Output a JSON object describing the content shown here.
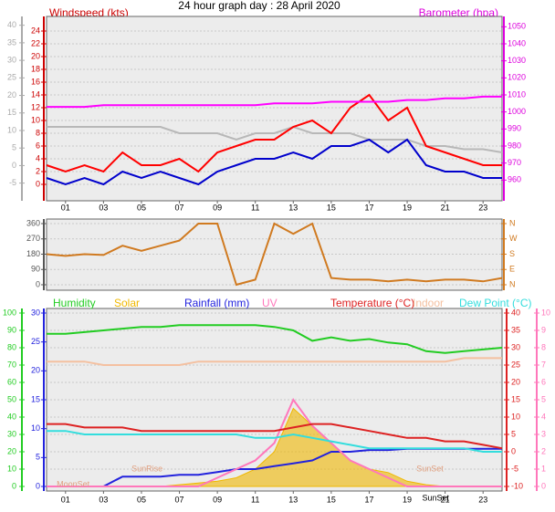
{
  "chart_data": [
    {
      "type": "line",
      "title": "24 hour graph day : 28 April 2020",
      "left_label": "Windspeed (kts)",
      "right_label": "Barometer (hpa)",
      "x": [
        0,
        1,
        2,
        3,
        4,
        5,
        6,
        7,
        8,
        9,
        10,
        11,
        12,
        13,
        14,
        15,
        16,
        17,
        18,
        19,
        20,
        21,
        22,
        23,
        24
      ],
      "xlim": [
        0,
        24
      ],
      "xticks": [
        {
          "value": 1,
          "label": "01"
        },
        {
          "value": 3,
          "label": "03"
        },
        {
          "value": 5,
          "label": "05"
        },
        {
          "value": 7,
          "label": "07"
        },
        {
          "value": 9,
          "label": "09"
        },
        {
          "value": 11,
          "label": "11"
        },
        {
          "value": 13,
          "label": "13"
        },
        {
          "value": 15,
          "label": "15"
        },
        {
          "value": 17,
          "label": "17"
        },
        {
          "value": 19,
          "label": "19"
        },
        {
          "value": 21,
          "label": "21"
        },
        {
          "value": 23,
          "label": "23"
        }
      ],
      "ylim": [
        -2,
        26
      ],
      "yticks": [
        0,
        2,
        4,
        6,
        8,
        10,
        12,
        14,
        16,
        18,
        20,
        22,
        24
      ],
      "y2lim": [
        950,
        1055
      ],
      "y2ticks": [
        960,
        970,
        980,
        990,
        1000,
        1010,
        1020,
        1030,
        1040,
        1050
      ],
      "y3lim": [
        -9,
        42
      ],
      "y3ticks": [
        -5,
        0,
        5,
        10,
        15,
        20,
        25,
        30,
        35,
        40
      ],
      "grid": true,
      "series": [
        {
          "color": "#b8b8b8",
          "axis": "y",
          "values": [
            9,
            9,
            9,
            9,
            9,
            9,
            9,
            8,
            8,
            8,
            7,
            8,
            8,
            9,
            8,
            8,
            8,
            7,
            7,
            7,
            6,
            6,
            5.5,
            5.5,
            5
          ]
        },
        {
          "color": "#ff0000",
          "axis": "y",
          "values": [
            3,
            2,
            3,
            2,
            5,
            3,
            3,
            4,
            2,
            5,
            6,
            7,
            7,
            9,
            10,
            8,
            12,
            14,
            10,
            12,
            6,
            5,
            4,
            3,
            3
          ]
        },
        {
          "color": "#0000cc",
          "axis": "y",
          "values": [
            1,
            0,
            1,
            0,
            2,
            1,
            2,
            1,
            0,
            2,
            3,
            4,
            4,
            5,
            4,
            6,
            6,
            7,
            5,
            7,
            3,
            2,
            2,
            1,
            1
          ]
        },
        {
          "color": "#ff00ff",
          "axis": "y2",
          "values": [
            1003,
            1003,
            1003,
            1004,
            1004,
            1004,
            1004,
            1004,
            1004,
            1004,
            1004,
            1004,
            1005,
            1005,
            1005,
            1006,
            1006,
            1006,
            1006,
            1007,
            1007,
            1008,
            1008,
            1009,
            1009
          ]
        }
      ]
    },
    {
      "type": "line",
      "x": [
        0,
        1,
        2,
        3,
        4,
        5,
        6,
        7,
        8,
        9,
        10,
        11,
        12,
        13,
        14,
        15,
        16,
        17,
        18,
        19,
        20,
        21,
        22,
        23,
        24
      ],
      "xlim": [
        0,
        24
      ],
      "ylim": [
        0,
        360
      ],
      "yticks": [
        0,
        90,
        180,
        270,
        360
      ],
      "y2lim": [
        0,
        360
      ],
      "y2ticks": [
        {
          "value": 0,
          "label": "N"
        },
        {
          "value": 90,
          "label": "E"
        },
        {
          "value": 180,
          "label": "S"
        },
        {
          "value": 270,
          "label": "W"
        },
        {
          "value": 360,
          "label": "N"
        }
      ],
      "grid": true,
      "series": [
        {
          "color": "#d07a20",
          "axis": "y",
          "values": [
            180,
            170,
            180,
            175,
            230,
            200,
            230,
            260,
            360,
            360,
            0,
            30,
            360,
            300,
            360,
            40,
            30,
            30,
            20,
            30,
            20,
            30,
            30,
            20,
            40
          ]
        }
      ]
    },
    {
      "type": "line",
      "x": [
        0,
        1,
        2,
        3,
        4,
        5,
        6,
        7,
        8,
        9,
        10,
        11,
        12,
        13,
        14,
        15,
        16,
        17,
        18,
        19,
        20,
        21,
        22,
        23,
        24
      ],
      "xlim": [
        0,
        24
      ],
      "xticks": [
        {
          "value": 1,
          "label": "01"
        },
        {
          "value": 3,
          "label": "03"
        },
        {
          "value": 5,
          "label": "05"
        },
        {
          "value": 7,
          "label": "07"
        },
        {
          "value": 9,
          "label": "09"
        },
        {
          "value": 11,
          "label": "11"
        },
        {
          "value": 13,
          "label": "13"
        },
        {
          "value": 15,
          "label": "15"
        },
        {
          "value": 17,
          "label": "17"
        },
        {
          "value": 19,
          "label": "19"
        },
        {
          "value": 21,
          "label": "21"
        },
        {
          "value": 23,
          "label": "23"
        }
      ],
      "ylim": [
        0,
        100
      ],
      "yticks": [
        0,
        10,
        20,
        30,
        40,
        50,
        60,
        70,
        80,
        90,
        100
      ],
      "y2lim": [
        -10,
        40
      ],
      "y2ticks": [
        -10,
        -5,
        0,
        5,
        10,
        15,
        20,
        25,
        30,
        35,
        40
      ],
      "y3lim": [
        0,
        30
      ],
      "y3ticks": [
        0,
        5,
        10,
        15,
        20,
        25,
        30
      ],
      "y4lim": [
        0,
        10
      ],
      "y4ticks": [
        0,
        1,
        2,
        3,
        4,
        5,
        6,
        7,
        8,
        9,
        10
      ],
      "grid": true,
      "series": [
        {
          "name": "Humidity",
          "color": "#22cc22",
          "axis": "y",
          "values": [
            88,
            88,
            89,
            90,
            91,
            92,
            92,
            93,
            93,
            93,
            93,
            93,
            92,
            90,
            84,
            86,
            84,
            85,
            83,
            82,
            78,
            77,
            78,
            79,
            80
          ]
        },
        {
          "name": "Solar",
          "color": "#f0b800",
          "axis": "y",
          "area": true,
          "values": [
            0,
            0,
            0,
            0,
            0,
            0,
            0,
            1,
            2,
            3,
            5,
            10,
            20,
            45,
            35,
            25,
            15,
            10,
            8,
            3,
            1,
            0,
            0,
            0,
            0
          ]
        },
        {
          "name": "Rainfall (mm)",
          "color": "#2222dd",
          "axis": "y3",
          "values": [
            0,
            0,
            0,
            0,
            1.7,
            1.7,
            1.7,
            2,
            2,
            2.5,
            3,
            3,
            3.5,
            4,
            4.5,
            6,
            6,
            6.3,
            6.3,
            6.5,
            6.5,
            6.5,
            6.5,
            6.5,
            6.5
          ]
        },
        {
          "name": "UV",
          "color": "#ff77bb",
          "axis": "y4",
          "values": [
            0,
            0,
            0,
            0,
            0,
            0,
            0,
            0,
            0,
            0.5,
            1,
            1.5,
            2.5,
            5,
            3.5,
            2.5,
            1.5,
            1,
            0.5,
            0,
            0,
            0,
            0,
            0,
            0
          ]
        },
        {
          "name": "Temperature (°C)",
          "color": "#dd2222",
          "axis": "y2",
          "values": [
            8,
            8,
            7,
            7,
            7,
            6,
            6,
            6,
            6,
            6,
            6,
            6,
            6,
            7,
            8,
            8,
            7,
            6,
            5,
            4,
            4,
            3,
            3,
            2,
            1
          ]
        },
        {
          "name": "Indoor",
          "color": "#f4c0a0",
          "axis": "y2",
          "values": [
            26,
            26,
            26,
            25,
            25,
            25,
            25,
            25,
            26,
            26,
            26,
            26,
            26,
            26,
            26,
            26,
            26,
            26,
            26,
            26,
            26,
            26,
            27,
            27,
            27
          ]
        },
        {
          "name": "Dew Point (°C)",
          "color": "#33dddd",
          "axis": "y2",
          "values": [
            6,
            6,
            5,
            5,
            5,
            5,
            5,
            5,
            5,
            5,
            5,
            4,
            4,
            5,
            4,
            3,
            2,
            1,
            1,
            1,
            1,
            1,
            1,
            0,
            0
          ]
        }
      ],
      "annotations": [
        {
          "text": "MoonSet",
          "x": 1.4,
          "y": 1
        },
        {
          "text": "SunRise",
          "x": 5.3,
          "y": 10
        },
        {
          "text": "SunSet",
          "x": 20.2,
          "y": 10
        },
        {
          "text": "SunSet",
          "x": 20.5,
          "y": -7
        }
      ]
    }
  ]
}
